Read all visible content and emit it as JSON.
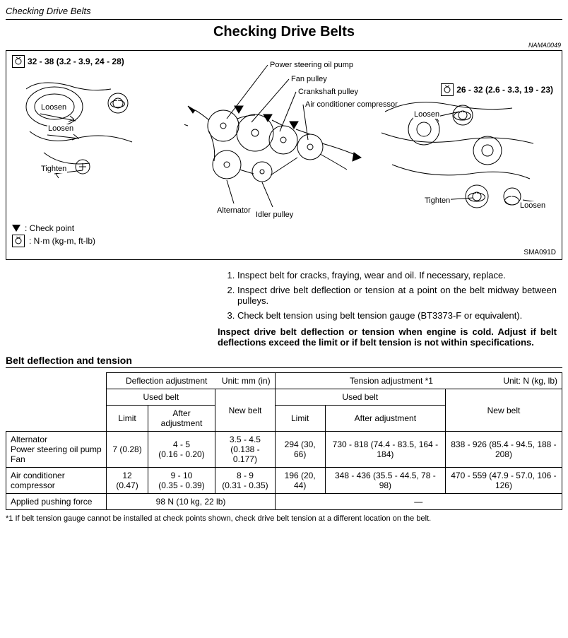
{
  "header": {
    "italic_title": "Checking Drive Belts"
  },
  "title": "Checking Drive Belts",
  "small_code": "NAMA0049",
  "diagram": {
    "torque_left": "32 - 38 (3.2 - 3.9, 24 - 28)",
    "torque_right": "26 - 32 (2.6 - 3.3, 19 - 23)",
    "labels": {
      "power_steering": "Power steering oil pump",
      "fan_pulley": "Fan pulley",
      "crankshaft": "Crankshaft pulley",
      "ac_compressor": "Air conditioner compressor",
      "alternator": "Alternator",
      "idler": "Idler pulley",
      "loosen": "Loosen",
      "tighten": "Tighten"
    },
    "legend": {
      "check_point": ": Check point",
      "units": ": N·m (kg-m, ft-lb)"
    },
    "code": "SMA091D"
  },
  "steps": [
    "Inspect belt for cracks, fraying, wear and oil. If necessary, replace.",
    "Inspect drive belt deflection or tension at a point on the belt midway between pulleys.",
    "Check belt tension using belt tension gauge (BT3373-F or equivalent)."
  ],
  "bold_note": "Inspect drive belt deflection or tension when engine is cold. Adjust if belt deflections exceed the limit or if belt tension is not within specifications.",
  "table": {
    "section_title": "Belt deflection and tension",
    "headers": {
      "deflection": "Deflection adjustment",
      "deflection_unit": "Unit: mm (in)",
      "tension": "Tension adjustment *1",
      "tension_unit": "Unit: N (kg, lb)",
      "used_belt": "Used belt",
      "new_belt": "New belt",
      "limit": "Limit",
      "after_adj": "After adjustment"
    },
    "rows": [
      {
        "label": "Alternator\nPower steering oil pump\nFan",
        "d_limit": "7 (0.28)",
        "d_after": "4 - 5\n(0.16 - 0.20)",
        "d_new": "3.5 - 4.5\n(0.138 - 0.177)",
        "t_limit": "294 (30, 66)",
        "t_after": "730 - 818 (74.4 - 83.5, 164 - 184)",
        "t_new": "838 - 926 (85.4 - 94.5, 188 - 208)"
      },
      {
        "label": "Air conditioner compressor",
        "d_limit": "12 (0.47)",
        "d_after": "9 - 10\n(0.35 - 0.39)",
        "d_new": "8 - 9\n(0.31 - 0.35)",
        "t_limit": "196 (20, 44)",
        "t_after": "348 - 436 (35.5 - 44.5, 78 - 98)",
        "t_new": "470 - 559 (47.9 - 57.0, 106 - 126)"
      }
    ],
    "applied_force": {
      "label": "Applied pushing force",
      "deflection": "98 N (10 kg, 22 lb)",
      "tension": "—"
    }
  },
  "footnote": "*1 If belt tension gauge cannot be installed at check points shown, check drive belt tension at a different location on the belt."
}
